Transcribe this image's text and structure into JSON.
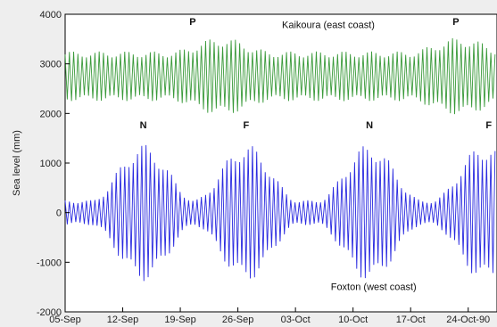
{
  "chart_data": {
    "type": "line",
    "ylabel": "Sea level (mm)",
    "ylim": [
      -2000,
      4000
    ],
    "yticks": [
      "4000",
      "3000",
      "2000",
      "1000",
      "0",
      "-1000",
      "-2000"
    ],
    "ytick_values": [
      4000,
      3000,
      2000,
      1000,
      0,
      -1000,
      -2000
    ],
    "xticks": [
      "05-Sep",
      "12-Sep",
      "19-Sep",
      "26-Sep",
      "03-Oct",
      "10-Oct",
      "17-Oct",
      "24-Oct-90"
    ],
    "xtick_days": [
      0,
      7,
      14,
      21,
      28,
      35,
      42,
      49
    ],
    "xlim_days": [
      0,
      52.5
    ],
    "series": [
      {
        "name": "Kaikoura (east coast)",
        "color": "#3a9a3a",
        "mean": 2750,
        "amplitude_envelope": {
          "min": 500,
          "max": 780,
          "peaks_day": [
            19,
            48
          ]
        },
        "period_days": 0.5175
      },
      {
        "name": "Foxton (west coast)",
        "color": "#2a2ae0",
        "mean": 0,
        "amplitude_envelope": {
          "min": 250,
          "max": 1380,
          "peaks_day": [
            9.5,
            22,
            37,
            51
          ]
        },
        "period_days": 0.5175
      }
    ],
    "annotations": [
      {
        "text": "P",
        "x_day": 15.5,
        "y": 3780
      },
      {
        "text": "P",
        "x_day": 47.5,
        "y": 3780
      },
      {
        "text": "N",
        "x_day": 9.5,
        "y": 1700
      },
      {
        "text": "F",
        "x_day": 22,
        "y": 1700
      },
      {
        "text": "N",
        "x_day": 37,
        "y": 1700
      },
      {
        "text": "F",
        "x_day": 51.5,
        "y": 1700
      },
      {
        "text": "Kaikoura (east coast)",
        "x_day": 32,
        "y": 3720
      },
      {
        "text": "Foxton (west coast)",
        "x_day": 37.5,
        "y": -1560
      }
    ]
  }
}
